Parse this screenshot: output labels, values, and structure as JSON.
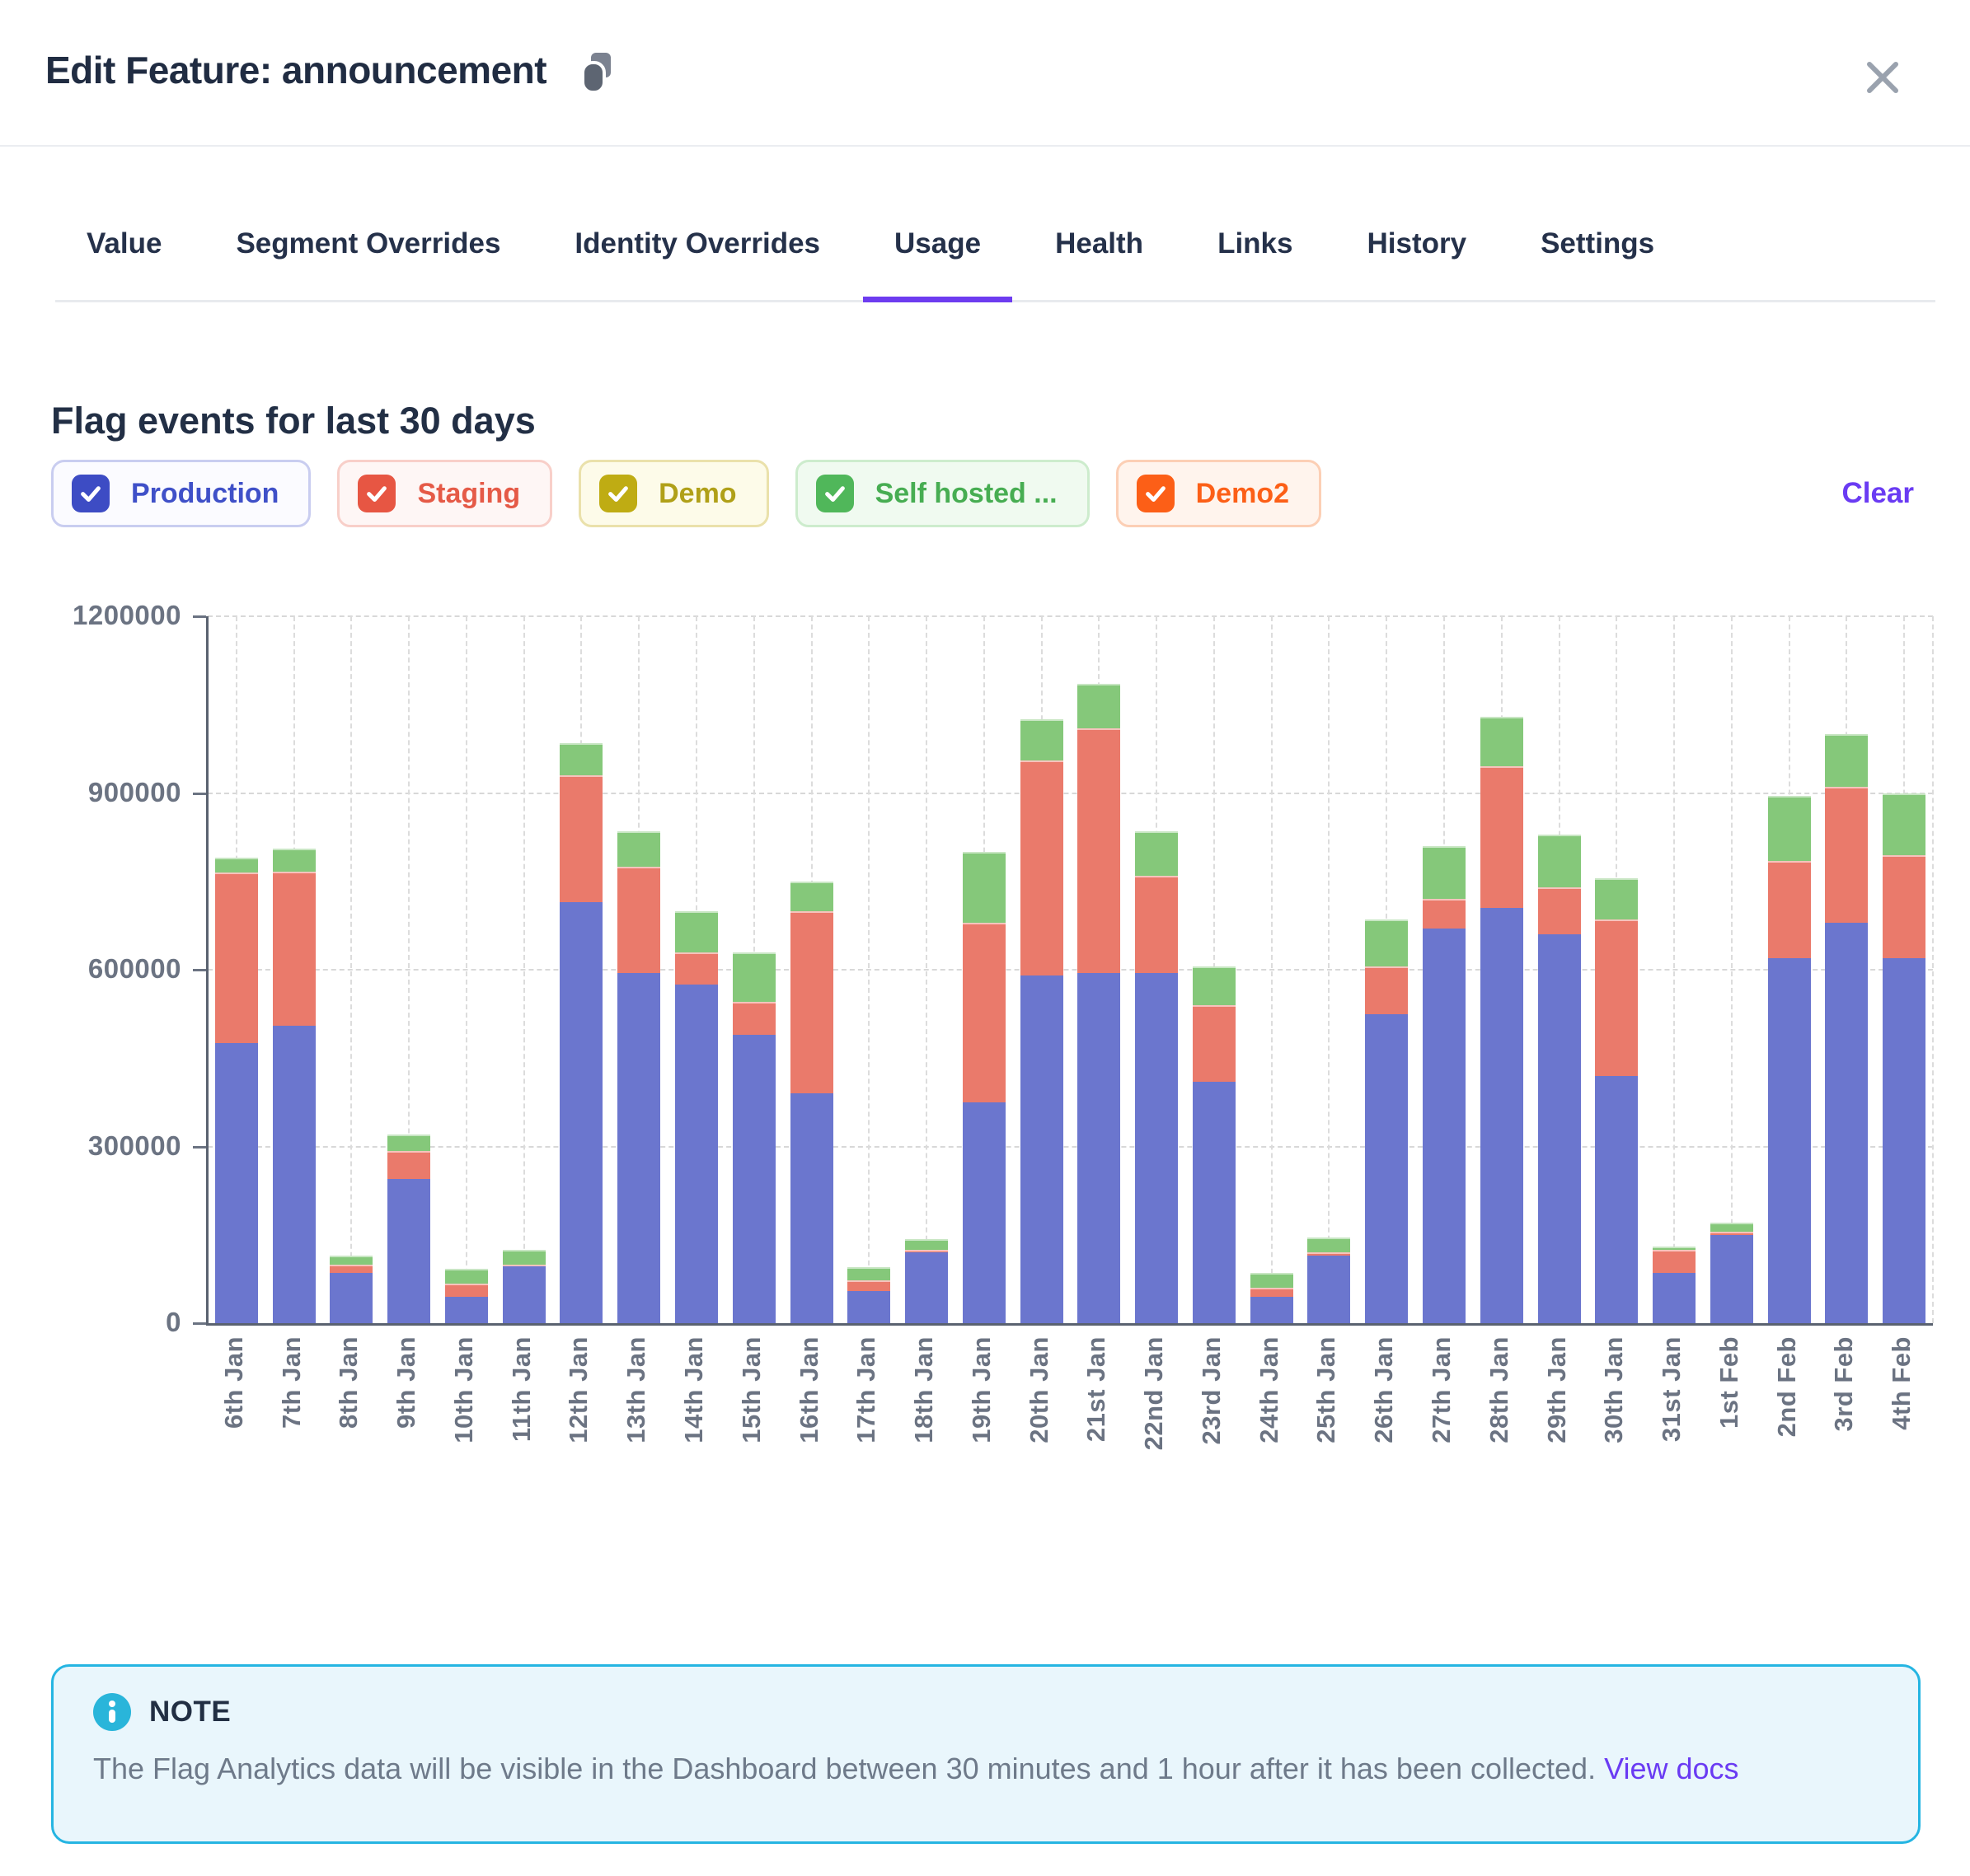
{
  "header": {
    "title": "Edit Feature: announcement"
  },
  "tabs": [
    {
      "label": "Value",
      "active": false
    },
    {
      "label": "Segment Overrides",
      "active": false
    },
    {
      "label": "Identity Overrides",
      "active": false
    },
    {
      "label": "Usage",
      "active": true
    },
    {
      "label": "Health",
      "active": false
    },
    {
      "label": "Links",
      "active": false
    },
    {
      "label": "History",
      "active": false
    },
    {
      "label": "Settings",
      "active": false
    }
  ],
  "usage": {
    "heading": "Flag events for last 30 days",
    "clear_label": "Clear",
    "filters": [
      {
        "label": "Production",
        "checked": true,
        "box": "#3d4cc4",
        "bg": "#fbfbff",
        "border": "#c9cdf0",
        "text": "#3f50c8"
      },
      {
        "label": "Staging",
        "checked": true,
        "box": "#e75643",
        "bg": "#fef6f5",
        "border": "#f8cfc9",
        "text": "#e55a47"
      },
      {
        "label": "Demo",
        "checked": true,
        "box": "#bfac13",
        "bg": "#fdfbe9",
        "border": "#eae1ab",
        "text": "#b0a018"
      },
      {
        "label": "Self hosted ...",
        "checked": true,
        "box": "#50b75a",
        "bg": "#f0faf0",
        "border": "#cdeccd",
        "text": "#47ad52"
      },
      {
        "label": "Demo2",
        "checked": true,
        "box": "#fc5f17",
        "bg": "#fff4ed",
        "border": "#fccfb5",
        "text": "#fc5f17"
      }
    ]
  },
  "chart_data": {
    "type": "bar",
    "stacked": true,
    "title": "Flag events for last 30 days",
    "xlabel": "",
    "ylabel": "",
    "ylim": [
      0,
      1200000
    ],
    "yticks": [
      0,
      300000,
      600000,
      900000,
      1200000
    ],
    "grid": true,
    "legend_position": "none",
    "categories": [
      "6th Jan",
      "7th Jan",
      "8th Jan",
      "9th Jan",
      "10th Jan",
      "11th Jan",
      "12th Jan",
      "13th Jan",
      "14th Jan",
      "15th Jan",
      "16th Jan",
      "17th Jan",
      "18th Jan",
      "19th Jan",
      "20th Jan",
      "21st Jan",
      "22nd Jan",
      "23rd Jan",
      "24th Jan",
      "25th Jan",
      "26th Jan",
      "27th Jan",
      "28th Jan",
      "29th Jan",
      "30th Jan",
      "31st Jan",
      "1st Feb",
      "2nd Feb",
      "3rd Feb",
      "4th Feb"
    ],
    "series": [
      {
        "name": "Production",
        "color": "#6b76ce",
        "values": [
          475000,
          505000,
          85000,
          245000,
          45000,
          97000,
          715000,
          595000,
          575000,
          490000,
          390000,
          55000,
          120000,
          375000,
          590000,
          595000,
          595000,
          410000,
          45000,
          115000,
          525000,
          670000,
          705000,
          660000,
          420000,
          85000,
          150000,
          620000,
          680000,
          620000
        ]
      },
      {
        "name": "Staging",
        "color": "#ea7a6b",
        "values": [
          290000,
          262000,
          15000,
          48000,
          22000,
          3000,
          215000,
          180000,
          55000,
          55000,
          310000,
          18000,
          5000,
          305000,
          365000,
          415000,
          165000,
          130000,
          15000,
          5000,
          80000,
          50000,
          240000,
          80000,
          265000,
          40000,
          5000,
          165000,
          230000,
          175000
        ]
      },
      {
        "name": "Self hosted ...",
        "color": "#85c87a",
        "values": [
          25000,
          38000,
          15000,
          27000,
          25000,
          25000,
          55000,
          60000,
          70000,
          85000,
          50000,
          22000,
          18000,
          120000,
          70000,
          75000,
          75000,
          65000,
          25000,
          25000,
          80000,
          90000,
          85000,
          90000,
          70000,
          5000,
          15000,
          110000,
          90000,
          105000
        ]
      }
    ]
  },
  "note": {
    "label": "NOTE",
    "body": "The Flag Analytics data will be visible in the Dashboard between 30 minutes and 1 hour after it has been collected.",
    "link_label": "View docs"
  },
  "colors": {
    "accent": "#6d3cf0",
    "axis": "#5a6270",
    "tick_text": "#6b7382",
    "note_border": "#25b5e2",
    "note_bg": "#e9f6fc",
    "note_icon": "#29b5da"
  }
}
